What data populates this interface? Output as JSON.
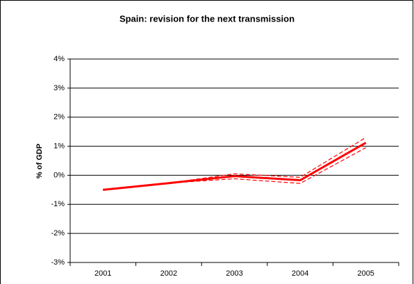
{
  "chart_data": {
    "type": "line",
    "title": "Spain: revision for the next transmission",
    "y_label": "% of GDP",
    "categories": [
      "2001",
      "2002",
      "2003",
      "2004",
      "2005"
    ],
    "series": [
      {
        "color": "#ff0000",
        "style": "solid",
        "values": [
          -0.5,
          -0.27,
          -0.03,
          -0.17,
          1.12
        ]
      },
      {
        "color": "#ff0000",
        "style": "dashed",
        "values": [
          -0.5,
          -0.27,
          0.05,
          -0.07,
          1.3
        ]
      },
      {
        "color": "#ff0000",
        "style": "dashed",
        "values": [
          -0.5,
          -0.27,
          -0.12,
          -0.28,
          0.95
        ]
      }
    ],
    "ylim": [
      -3,
      4
    ],
    "yticks": [
      {
        "value": -3,
        "label": "-3%"
      },
      {
        "value": -2,
        "label": "-2%"
      },
      {
        "value": -1,
        "label": "-1%"
      },
      {
        "value": 0,
        "label": "0%"
      },
      {
        "value": 1,
        "label": "1%"
      },
      {
        "value": 2,
        "label": "2%"
      },
      {
        "value": 3,
        "label": "3%"
      },
      {
        "value": 4,
        "label": "4%"
      }
    ],
    "grid": true
  }
}
